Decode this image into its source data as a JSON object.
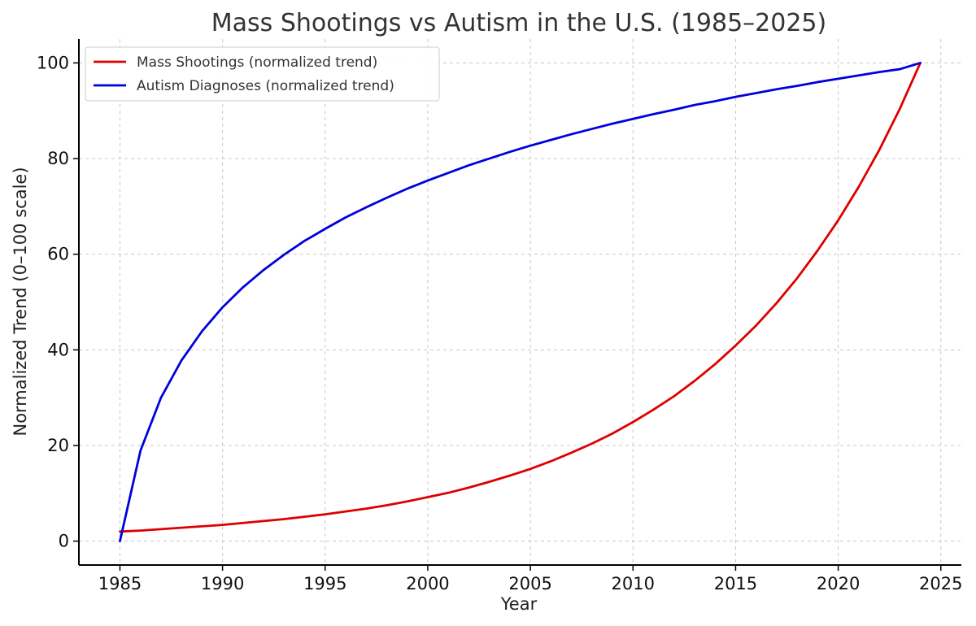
{
  "chart_data": {
    "type": "line",
    "title": "Mass Shootings vs Autism in the U.S. (1985–2025)",
    "xlabel": "Year",
    "ylabel": "Normalized Trend (0–100 scale)",
    "xlim": [
      1983,
      2026
    ],
    "ylim": [
      -5,
      105
    ],
    "xticks": [
      1985,
      1990,
      1995,
      2000,
      2005,
      2010,
      2015,
      2020,
      2025
    ],
    "yticks": [
      0,
      20,
      40,
      60,
      80,
      100
    ],
    "grid": true,
    "legend": "top-left",
    "x": [
      1985,
      1986,
      1987,
      1988,
      1989,
      1990,
      1991,
      1992,
      1993,
      1994,
      1995,
      1996,
      1997,
      1998,
      1999,
      2000,
      2001,
      2002,
      2003,
      2004,
      2005,
      2006,
      2007,
      2008,
      2009,
      2010,
      2011,
      2012,
      2013,
      2014,
      2015,
      2016,
      2017,
      2018,
      2019,
      2020,
      2021,
      2022,
      2023,
      2024
    ],
    "series": [
      {
        "name": "Mass Shootings (normalized trend)",
        "color": "#dd0000",
        "values": [
          2.0,
          2.2,
          2.5,
          2.8,
          3.1,
          3.4,
          3.8,
          4.2,
          4.6,
          5.1,
          5.6,
          6.2,
          6.8,
          7.5,
          8.3,
          9.2,
          10.1,
          11.2,
          12.4,
          13.7,
          15.1,
          16.7,
          18.5,
          20.4,
          22.5,
          24.9,
          27.5,
          30.3,
          33.5,
          37.0,
          40.9,
          45.1,
          49.8,
          55.0,
          60.8,
          67.1,
          74.1,
          81.8,
          90.4,
          100.0
        ]
      },
      {
        "name": "Autism Diagnoses (normalized trend)",
        "color": "#0000dd",
        "values": [
          0.0,
          18.9,
          30.0,
          37.8,
          43.9,
          48.9,
          53.1,
          56.7,
          59.9,
          62.8,
          65.3,
          67.7,
          69.8,
          71.8,
          73.7,
          75.4,
          77.0,
          78.6,
          80.0,
          81.4,
          82.7,
          83.9,
          85.1,
          86.2,
          87.3,
          88.3,
          89.3,
          90.2,
          91.2,
          92.0,
          92.9,
          93.7,
          94.5,
          95.2,
          96.0,
          96.7,
          97.4,
          98.1,
          98.7,
          100.0
        ]
      }
    ]
  }
}
